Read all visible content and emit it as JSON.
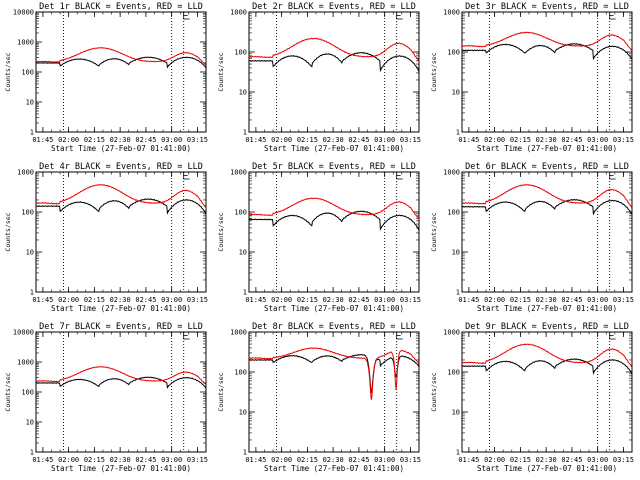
{
  "colors": {
    "events": "#000000",
    "lld": "#ee0000",
    "background": "#ffffff"
  },
  "chart_data": [
    {
      "type": "line",
      "title": "Det 1r BLACK = Events, RED = LLD",
      "xlabel": "Start Time (27-Feb-07 01:41:00)",
      "ylabel": "Counts/sec",
      "ylim": [
        1,
        10000
      ],
      "yscale": "log",
      "yticks": [
        "1",
        "10",
        "100",
        "1000",
        "10000"
      ],
      "xticks": [
        "01:45",
        "02:00",
        "02:15",
        "02:30",
        "02:45",
        "03:00",
        "03:15"
      ],
      "xlim": [
        "01:41",
        "03:20"
      ],
      "vlines": [
        "01:57",
        "03:00",
        "03:07"
      ],
      "marker": "03:07",
      "series": [
        {
          "name": "Events",
          "color": "#000000",
          "base": 200,
          "steps": [
            [
              1,
              0
            ],
            [
              0.78,
              0.73
            ],
            [
              0.85,
              0.62
            ],
            [
              1.0,
              0.55
            ],
            [
              0.7,
              1.2
            ]
          ]
        },
        {
          "name": "LLD",
          "color": "#ee0000",
          "base": 220,
          "peaks": [
            [
              2.9,
              0.62
            ],
            [
              2.0,
              0.92
            ]
          ]
        }
      ]
    },
    {
      "type": "line",
      "title": "Det 2r BLACK = Events, RED = LLD",
      "xlabel": "Start Time (27-Feb-07 01:41:00)",
      "ylabel": "Counts/sec",
      "ylim": [
        1,
        1000
      ],
      "yscale": "log",
      "yticks": [
        "1",
        "10",
        "100",
        "1000"
      ],
      "xticks": [
        "01:45",
        "02:00",
        "02:15",
        "02:30",
        "02:45",
        "03:00",
        "03:15"
      ],
      "xlim": [
        "01:41",
        "03:20"
      ],
      "vlines": [
        "01:57",
        "03:00",
        "03:07"
      ],
      "marker": "03:07",
      "series": [
        {
          "name": "Events",
          "color": "#000000",
          "base": 60,
          "steps": [
            [
              1,
              0
            ],
            [
              0.7,
              0.9
            ],
            [
              0.85,
              0.75
            ],
            [
              1.0,
              0.6
            ],
            [
              0.55,
              1.4
            ]
          ]
        },
        {
          "name": "LLD",
          "color": "#ee0000",
          "base": 75,
          "peaks": [
            [
              2.9,
              0.9
            ],
            [
              2.2,
              1.0
            ]
          ]
        }
      ]
    },
    {
      "type": "line",
      "title": "Det 3r BLACK = Events, RED = LLD",
      "xlabel": "Start Time (27-Feb-07 01:41:00)",
      "ylabel": "Counts/sec",
      "ylim": [
        1,
        1000
      ],
      "yscale": "log",
      "yticks": [
        "1",
        "10",
        "100",
        "1000"
      ],
      "xticks": [
        "01:45",
        "02:00",
        "02:15",
        "02:30",
        "02:45",
        "03:00",
        "03:15"
      ],
      "xlim": [
        "01:41",
        "03:20"
      ],
      "vlines": [
        "01:57",
        "03:00",
        "03:07"
      ],
      "marker": "03:07",
      "series": [
        {
          "name": "Events",
          "color": "#000000",
          "base": 110,
          "steps": [
            [
              1,
              0
            ],
            [
              0.85,
              0.65
            ],
            [
              0.85,
              0.55
            ],
            [
              1.0,
              0.45
            ],
            [
              0.6,
              1.1
            ]
          ]
        },
        {
          "name": "LLD",
          "color": "#ee0000",
          "base": 140,
          "peaks": [
            [
              2.2,
              0.6
            ],
            [
              1.9,
              0.8
            ]
          ]
        }
      ]
    },
    {
      "type": "line",
      "title": "Det 4r BLACK = Events, RED = LLD",
      "xlabel": "Start Time (27-Feb-07 01:41:00)",
      "ylabel": "Counts/sec",
      "ylim": [
        1,
        1000
      ],
      "yscale": "log",
      "yticks": [
        "1",
        "10",
        "100",
        "1000"
      ],
      "xticks": [
        "01:45",
        "02:00",
        "02:15",
        "02:30",
        "02:45",
        "03:00",
        "03:15"
      ],
      "xlim": [
        "01:41",
        "03:20"
      ],
      "vlines": [
        "01:57",
        "03:00",
        "03:07"
      ],
      "marker": "03:07",
      "series": [
        {
          "name": "Events",
          "color": "#000000",
          "base": 140,
          "steps": [
            [
              1,
              0
            ],
            [
              0.72,
              0.75
            ],
            [
              0.85,
              0.6
            ],
            [
              1.0,
              0.5
            ],
            [
              0.65,
              1.2
            ]
          ]
        },
        {
          "name": "LLD",
          "color": "#ee0000",
          "base": 165,
          "peaks": [
            [
              2.9,
              0.62
            ],
            [
              2.1,
              0.9
            ]
          ]
        }
      ]
    },
    {
      "type": "line",
      "title": "Det 5r BLACK = Events, RED = LLD",
      "xlabel": "Start Time (27-Feb-07 01:41:00)",
      "ylabel": "Counts/sec",
      "ylim": [
        1,
        1000
      ],
      "yscale": "log",
      "yticks": [
        "1",
        "10",
        "100",
        "1000"
      ],
      "xticks": [
        "01:45",
        "02:00",
        "02:15",
        "02:30",
        "02:45",
        "03:00",
        "03:15"
      ],
      "xlim": [
        "01:41",
        "03:20"
      ],
      "vlines": [
        "01:57",
        "03:00",
        "03:07"
      ],
      "marker": "03:07",
      "series": [
        {
          "name": "Events",
          "color": "#000000",
          "base": 65,
          "steps": [
            [
              1,
              0
            ],
            [
              0.68,
              0.85
            ],
            [
              0.85,
              0.7
            ],
            [
              1.0,
              0.6
            ],
            [
              0.55,
              1.3
            ]
          ]
        },
        {
          "name": "LLD",
          "color": "#ee0000",
          "base": 85,
          "peaks": [
            [
              2.6,
              0.8
            ],
            [
              2.1,
              0.95
            ]
          ]
        }
      ]
    },
    {
      "type": "line",
      "title": "Det 6r BLACK = Events, RED = LLD",
      "xlabel": "Start Time (27-Feb-07 01:41:00)",
      "ylabel": "Counts/sec",
      "ylim": [
        1,
        1000
      ],
      "yscale": "log",
      "yticks": [
        "1",
        "10",
        "100",
        "1000"
      ],
      "xticks": [
        "01:45",
        "02:00",
        "02:15",
        "02:30",
        "02:45",
        "03:00",
        "03:15"
      ],
      "xlim": [
        "01:41",
        "03:20"
      ],
      "vlines": [
        "01:57",
        "03:00",
        "03:07"
      ],
      "marker": "03:07",
      "series": [
        {
          "name": "Events",
          "color": "#000000",
          "base": 135,
          "steps": [
            [
              1,
              0
            ],
            [
              0.75,
              0.75
            ],
            [
              0.85,
              0.6
            ],
            [
              1.0,
              0.5
            ],
            [
              0.65,
              1.2
            ]
          ]
        },
        {
          "name": "LLD",
          "color": "#ee0000",
          "base": 165,
          "peaks": [
            [
              2.9,
              0.6
            ],
            [
              2.2,
              0.9
            ]
          ]
        }
      ]
    },
    {
      "type": "line",
      "title": "Det 7r BLACK = Events, RED = LLD",
      "xlabel": "Start Time (27-Feb-07 01:41:00)",
      "ylabel": "Counts/sec",
      "ylim": [
        1,
        10000
      ],
      "yscale": "log",
      "yticks": [
        "1",
        "10",
        "100",
        "1000",
        "10000"
      ],
      "xticks": [
        "01:45",
        "02:00",
        "02:15",
        "02:30",
        "02:45",
        "03:00",
        "03:15"
      ],
      "xlim": [
        "01:41",
        "03:20"
      ],
      "vlines": [
        "01:57",
        "03:00",
        "03:07"
      ],
      "marker": "03:07",
      "series": [
        {
          "name": "Events",
          "color": "#000000",
          "base": 200,
          "steps": [
            [
              1,
              0
            ],
            [
              0.75,
              0.75
            ],
            [
              0.85,
              0.62
            ],
            [
              1.0,
              0.55
            ],
            [
              0.68,
              1.2
            ]
          ]
        },
        {
          "name": "LLD",
          "color": "#ee0000",
          "base": 230,
          "peaks": [
            [
              3.0,
              0.62
            ],
            [
              2.0,
              0.92
            ]
          ]
        }
      ]
    },
    {
      "type": "line",
      "title": "Det 8r BLACK = Events, RED = LLD",
      "xlabel": "Start Time (27-Feb-07 01:41:00)",
      "ylabel": "Counts/sec",
      "ylim": [
        1,
        1000
      ],
      "yscale": "log",
      "yticks": [
        "1",
        "10",
        "100",
        "1000"
      ],
      "xticks": [
        "01:45",
        "02:00",
        "02:15",
        "02:30",
        "02:45",
        "03:00",
        "03:15"
      ],
      "xlim": [
        "01:41",
        "03:20"
      ],
      "vlines": [
        "01:57",
        "03:00",
        "03:07"
      ],
      "marker": "03:07",
      "series": [
        {
          "name": "Events",
          "color": "#000000",
          "base": 200,
          "steps": [
            [
              1,
              0
            ],
            [
              0.85,
              0.5
            ],
            [
              0.9,
              0.4
            ],
            [
              1.0,
              0.35
            ],
            [
              0.7,
              0.8
            ]
          ],
          "dips": [
            [
              0.72,
              0.02,
              0.12
            ],
            [
              0.865,
              0.015,
              0.3
            ]
          ]
        },
        {
          "name": "LLD",
          "color": "#ee0000",
          "base": 220,
          "peaks": [
            [
              1.8,
              0.35
            ],
            [
              1.6,
              0.5
            ]
          ],
          "dips": [
            [
              0.72,
              0.02,
              0.09
            ],
            [
              0.865,
              0.015,
              0.1
            ]
          ]
        }
      ]
    },
    {
      "type": "line",
      "title": "Det 9r BLACK = Events, RED = LLD",
      "xlabel": "Start Time (27-Feb-07 01:41:00)",
      "ylabel": "Counts/sec",
      "ylim": [
        1,
        1000
      ],
      "yscale": "log",
      "yticks": [
        "1",
        "10",
        "100",
        "1000"
      ],
      "xticks": [
        "01:45",
        "02:00",
        "02:15",
        "02:30",
        "02:45",
        "03:00",
        "03:15"
      ],
      "xlim": [
        "01:41",
        "03:20"
      ],
      "vlines": [
        "01:57",
        "03:00",
        "03:07"
      ],
      "marker": "03:07",
      "series": [
        {
          "name": "Events",
          "color": "#000000",
          "base": 140,
          "steps": [
            [
              1,
              0
            ],
            [
              0.75,
              0.75
            ],
            [
              0.85,
              0.6
            ],
            [
              1.0,
              0.5
            ],
            [
              0.65,
              1.2
            ]
          ]
        },
        {
          "name": "LLD",
          "color": "#ee0000",
          "base": 170,
          "peaks": [
            [
              2.9,
              0.6
            ],
            [
              2.2,
              0.9
            ]
          ]
        }
      ]
    }
  ]
}
